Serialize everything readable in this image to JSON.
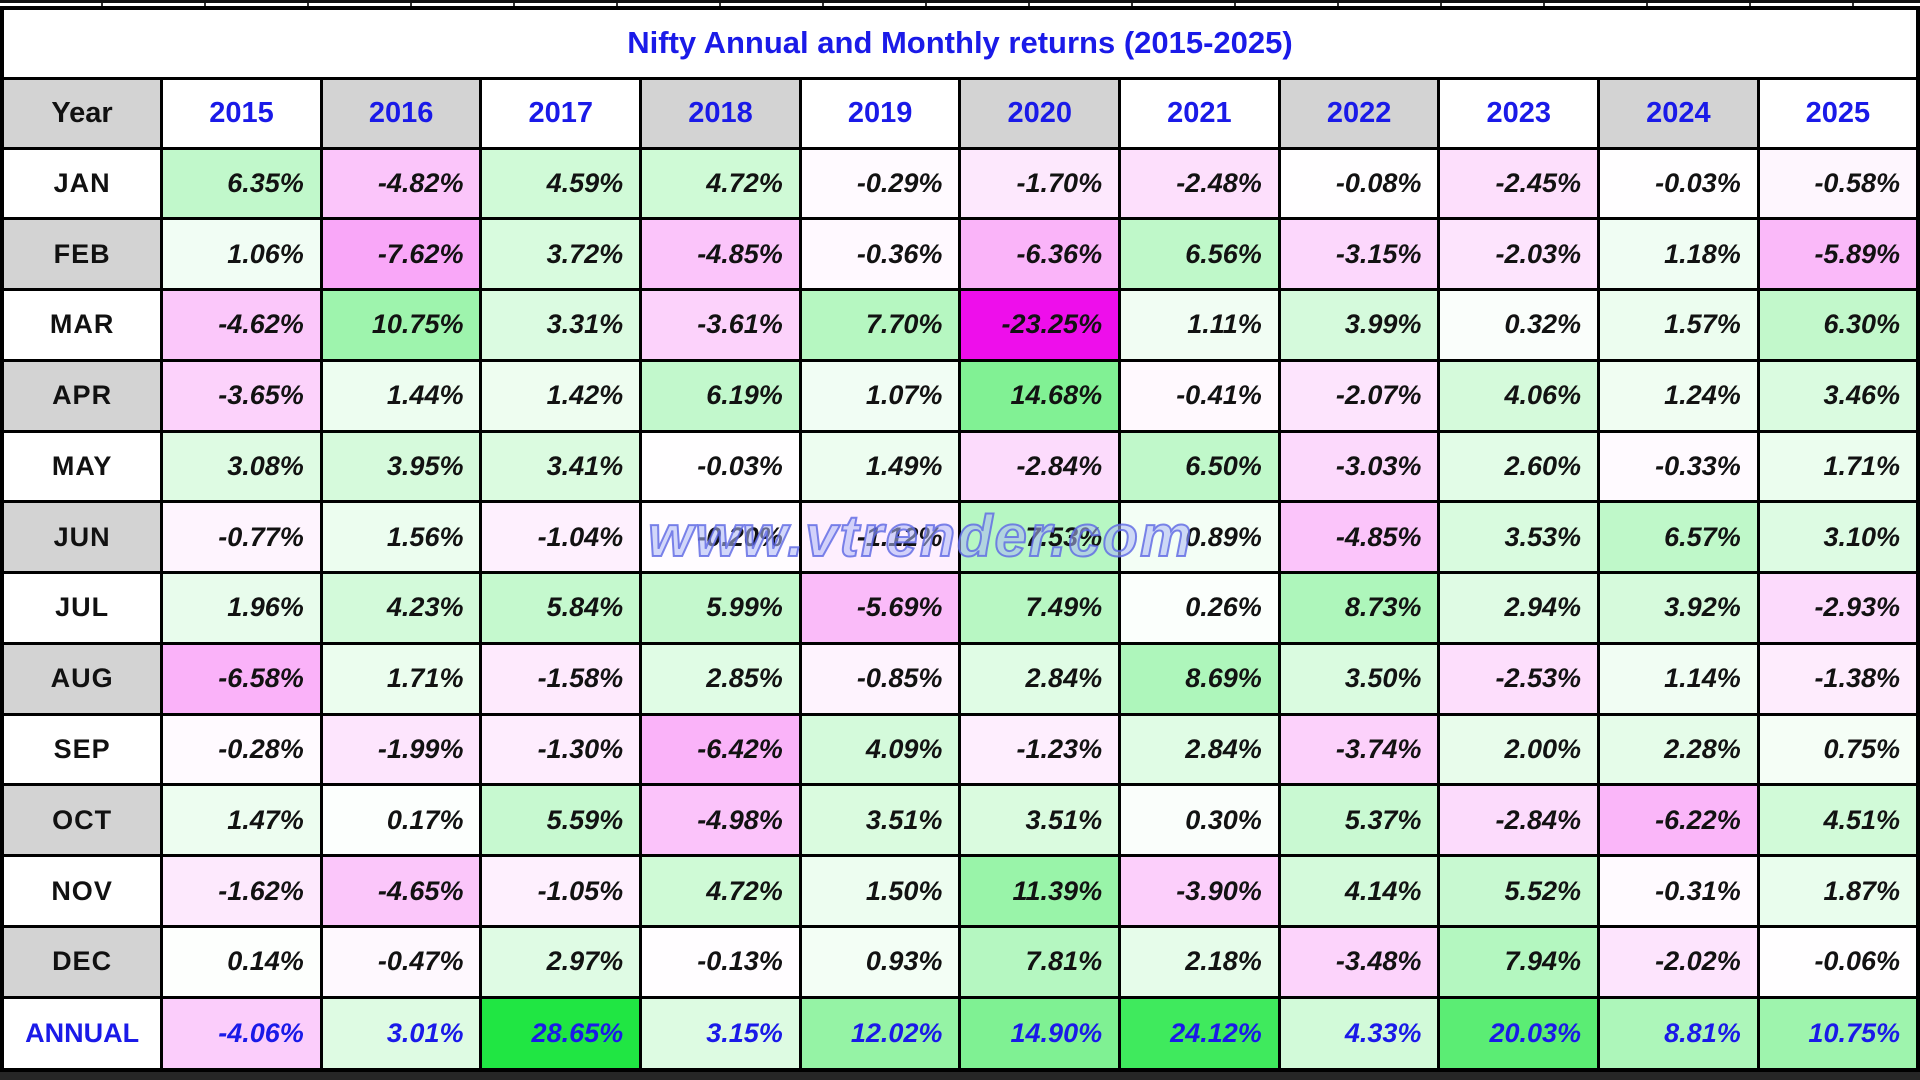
{
  "title": "Nifty Annual and Monthly returns (2015-2025)",
  "watermark": "www.vtrender.com",
  "header": {
    "corner": "Year"
  },
  "colors": {
    "blue_text": "#1a1ae8",
    "value_text": "#121212",
    "header_gray": "#d3d3d3",
    "border": "#000000",
    "positive_max_color": "#1ee641",
    "negative_max_color": "#ee0ceb",
    "neutral_color": "#ffffff"
  },
  "heatmap_scale": {
    "positive_cap": 29,
    "positive_rgb_delta": [
      225,
      25,
      190
    ],
    "positive_gamma": 0.85,
    "negative_cap": 23.5,
    "negative_rgb_delta": [
      17,
      243,
      20
    ],
    "negative_gamma": 0.9
  },
  "chart_data": {
    "type": "heatmap",
    "title": "Nifty Annual and Monthly returns (2015-2025)",
    "unit": "%",
    "columns": [
      "2015",
      "2016",
      "2017",
      "2018",
      "2019",
      "2020",
      "2021",
      "2022",
      "2023",
      "2024",
      "2025"
    ],
    "series": [
      {
        "name": "JAN",
        "values": [
          6.35,
          -4.82,
          4.59,
          4.72,
          -0.29,
          -1.7,
          -2.48,
          -0.08,
          -2.45,
          -0.03,
          -0.58
        ]
      },
      {
        "name": "FEB",
        "values": [
          1.06,
          -7.62,
          3.72,
          -4.85,
          -0.36,
          -6.36,
          6.56,
          -3.15,
          -2.03,
          1.18,
          -5.89
        ]
      },
      {
        "name": "MAR",
        "values": [
          -4.62,
          10.75,
          3.31,
          -3.61,
          7.7,
          -23.25,
          1.11,
          3.99,
          0.32,
          1.57,
          6.3
        ]
      },
      {
        "name": "APR",
        "values": [
          -3.65,
          1.44,
          1.42,
          6.19,
          1.07,
          14.68,
          -0.41,
          -2.07,
          4.06,
          1.24,
          3.46
        ]
      },
      {
        "name": "MAY",
        "values": [
          3.08,
          3.95,
          3.41,
          -0.03,
          1.49,
          -2.84,
          6.5,
          -3.03,
          2.6,
          -0.33,
          1.71
        ]
      },
      {
        "name": "JUN",
        "values": [
          -0.77,
          1.56,
          -1.04,
          -0.2,
          -1.12,
          7.53,
          0.89,
          -4.85,
          3.53,
          6.57,
          3.1
        ]
      },
      {
        "name": "JUL",
        "values": [
          1.96,
          4.23,
          5.84,
          5.99,
          -5.69,
          7.49,
          0.26,
          8.73,
          2.94,
          3.92,
          -2.93
        ]
      },
      {
        "name": "AUG",
        "values": [
          -6.58,
          1.71,
          -1.58,
          2.85,
          -0.85,
          2.84,
          8.69,
          3.5,
          -2.53,
          1.14,
          -1.38
        ]
      },
      {
        "name": "SEP",
        "values": [
          -0.28,
          -1.99,
          -1.3,
          -6.42,
          4.09,
          -1.23,
          2.84,
          -3.74,
          2.0,
          2.28,
          0.75
        ]
      },
      {
        "name": "OCT",
        "values": [
          1.47,
          0.17,
          5.59,
          -4.98,
          3.51,
          3.51,
          0.3,
          5.37,
          -2.84,
          -6.22,
          4.51
        ]
      },
      {
        "name": "NOV",
        "values": [
          -1.62,
          -4.65,
          -1.05,
          4.72,
          1.5,
          11.39,
          -3.9,
          4.14,
          5.52,
          -0.31,
          1.87
        ]
      },
      {
        "name": "DEC",
        "values": [
          0.14,
          -0.47,
          2.97,
          -0.13,
          0.93,
          7.81,
          2.18,
          -3.48,
          7.94,
          -2.02,
          -0.06
        ]
      },
      {
        "name": "ANNUAL",
        "values": [
          -4.06,
          3.01,
          28.65,
          3.15,
          12.02,
          14.9,
          24.12,
          4.33,
          20.03,
          8.81,
          10.75
        ]
      }
    ]
  }
}
